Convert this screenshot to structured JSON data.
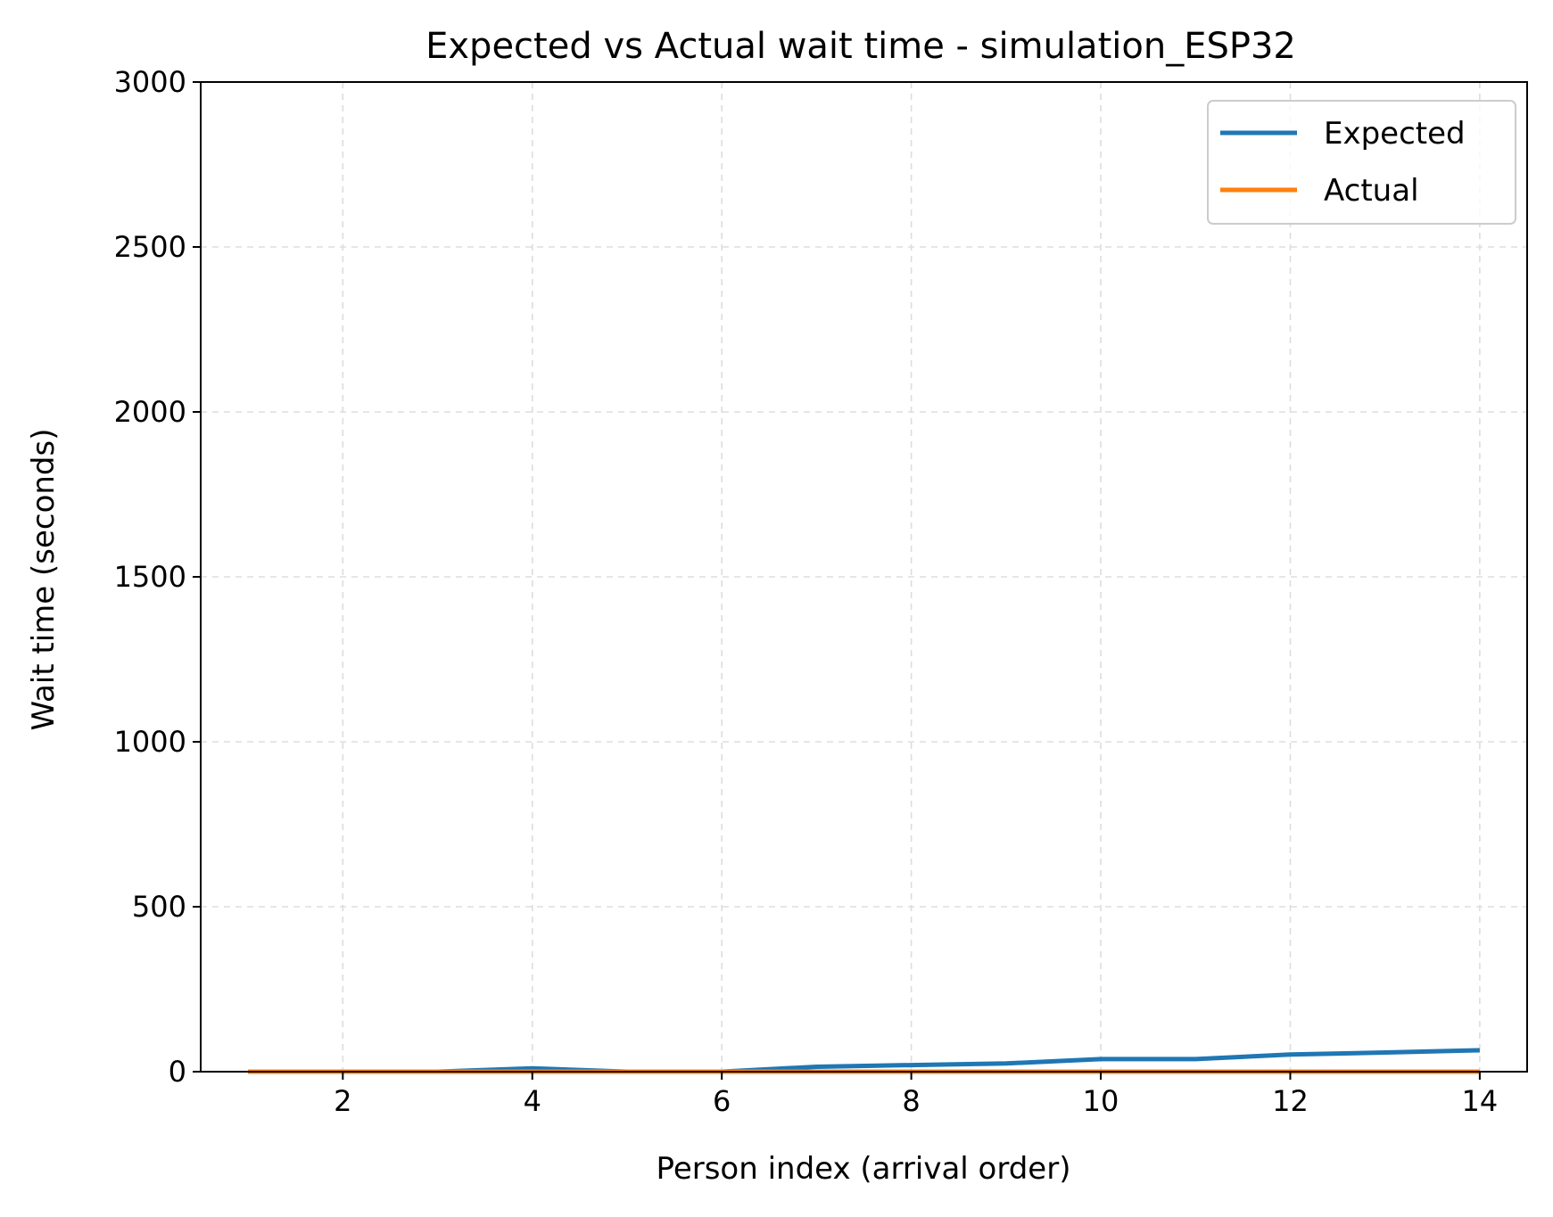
{
  "chart_data": {
    "type": "line",
    "title": "Expected vs Actual wait time - simulation_ESP32",
    "xlabel": "Person index (arrival order)",
    "ylabel": "Wait time (seconds)",
    "xlim": [
      0.5,
      14.5
    ],
    "ylim": [
      0,
      3000
    ],
    "x_ticks": [
      2,
      4,
      6,
      8,
      10,
      12,
      14
    ],
    "x_tick_labels": [
      "2",
      "4",
      "6",
      "8",
      "10",
      "12",
      "14"
    ],
    "y_ticks": [
      0,
      500,
      1000,
      1500,
      2000,
      2500,
      3000
    ],
    "y_tick_labels": [
      "0",
      "500",
      "1000",
      "1500",
      "2000",
      "2500",
      "3000"
    ],
    "grid": true,
    "legend_position": "top-right",
    "x": [
      1,
      2,
      3,
      4,
      5,
      6,
      7,
      8,
      9,
      10,
      11,
      12,
      13,
      14
    ],
    "series": [
      {
        "name": "Expected",
        "color": "#1f77b4",
        "values": [
          0,
          0,
          0,
          10,
          0,
          0,
          15,
          20,
          25,
          38,
          38,
          52,
          58,
          65
        ]
      },
      {
        "name": "Actual",
        "color": "#ff7f0e",
        "values": [
          0,
          0,
          0,
          0,
          0,
          0,
          0,
          0,
          0,
          0,
          0,
          0,
          0,
          0
        ]
      }
    ]
  }
}
